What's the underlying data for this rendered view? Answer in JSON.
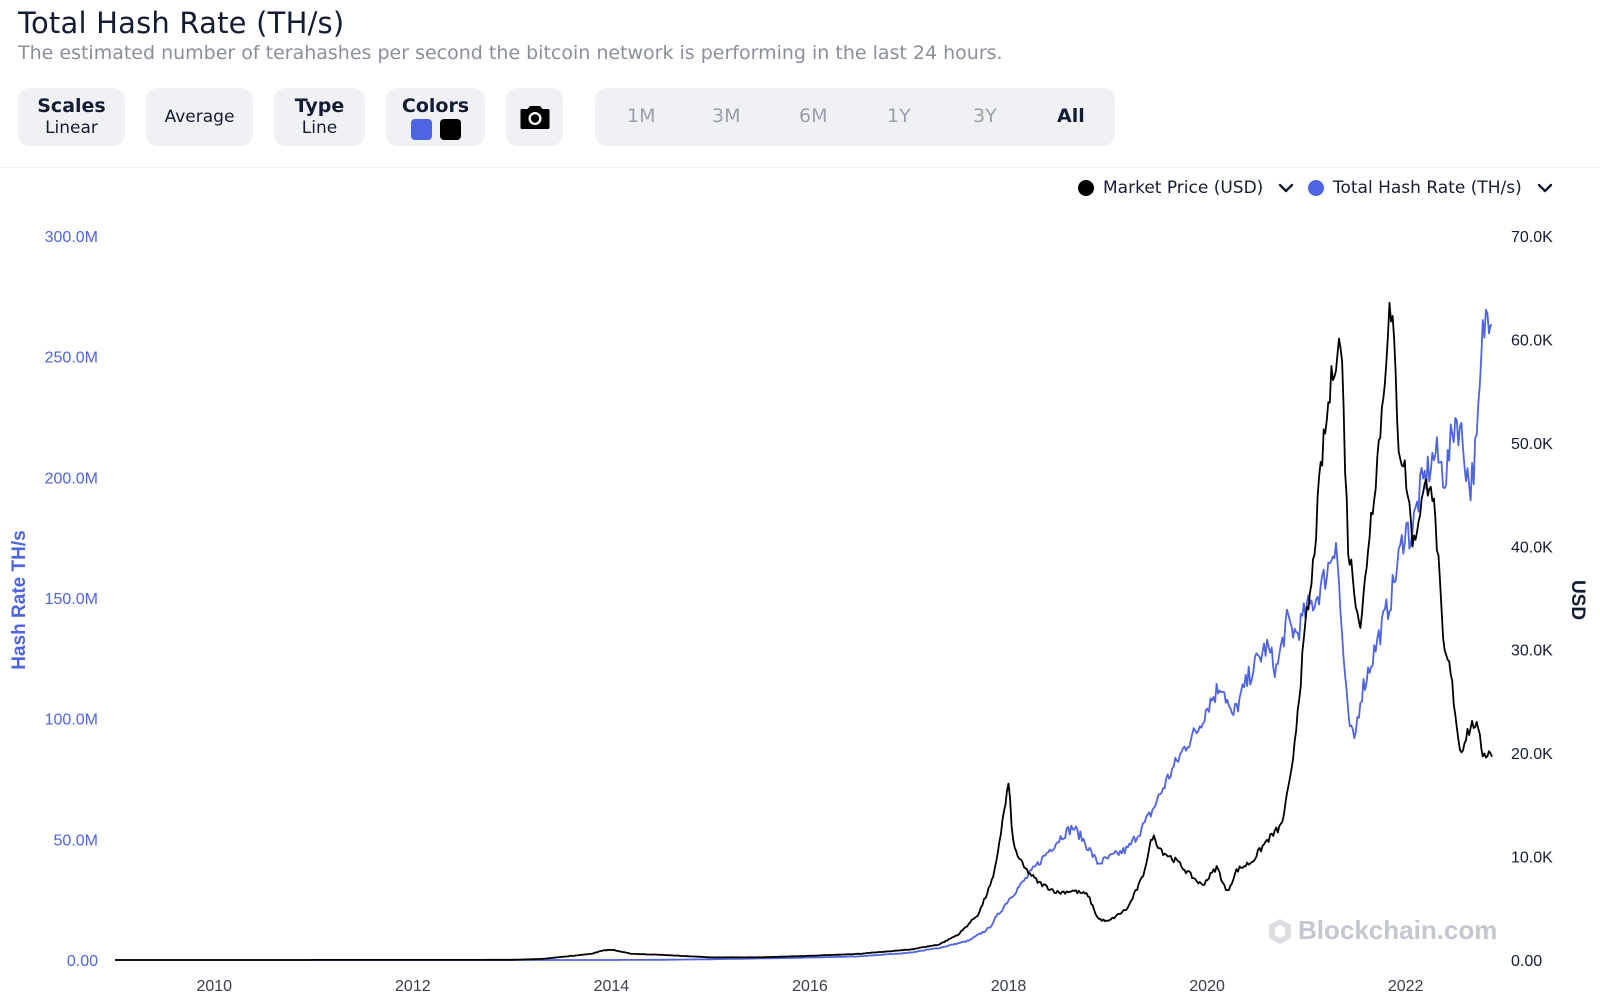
{
  "header": {
    "title": "Total Hash Rate (TH/s)",
    "subtitle": "The estimated number of terahashes per second the bitcoin network is performing in the last 24 hours."
  },
  "toolbar": {
    "scales": {
      "label": "Scales",
      "value": "Linear"
    },
    "average": {
      "label": "Average"
    },
    "type": {
      "label": "Type",
      "value": "Line"
    },
    "colors": {
      "label": "Colors",
      "swatches": [
        "#4e64e0",
        "#000000"
      ]
    },
    "screenshot_icon": "camera-icon",
    "ranges": [
      "1M",
      "3M",
      "6M",
      "1Y",
      "3Y",
      "All"
    ],
    "active_range": "All"
  },
  "legend": [
    {
      "label": "Market Price (USD)",
      "color": "#000000",
      "icon": "chevron-down-icon"
    },
    {
      "label": "Total Hash Rate (TH/s)",
      "color": "#4e64e0",
      "icon": "chevron-down-icon"
    }
  ],
  "watermark": "Blockchain.com",
  "chart_data": {
    "type": "line",
    "x_ticks": [
      "2010",
      "2012",
      "2014",
      "2016",
      "2018",
      "2020",
      "2022"
    ],
    "xlim": [
      2009.0,
      2022.9
    ],
    "y_left": {
      "label": "Hash Rate TH/s",
      "ticks": [
        "0.00",
        "50.0M",
        "100.0M",
        "150.0M",
        "200.0M",
        "250.0M",
        "300.0M"
      ],
      "ylim": [
        0,
        300000000
      ],
      "color": "#4e64e0"
    },
    "y_right": {
      "label": "USD",
      "ticks": [
        "0.00",
        "10.0K",
        "20.0K",
        "30.0K",
        "40.0K",
        "50.0K",
        "60.0K",
        "70.0K"
      ],
      "ylim": [
        0,
        70000
      ],
      "color": "#000000"
    },
    "series": [
      {
        "name": "Total Hash Rate (TH/s)",
        "axis": "left",
        "color": "#4e64e0",
        "x": [
          2009.0,
          2012.0,
          2013.0,
          2013.5,
          2014.0,
          2014.5,
          2015.0,
          2016.0,
          2016.5,
          2017.0,
          2017.3,
          2017.6,
          2017.8,
          2018.0,
          2018.2,
          2018.4,
          2018.55,
          2018.65,
          2018.75,
          2018.9,
          2019.0,
          2019.2,
          2019.35,
          2019.45,
          2019.6,
          2019.8,
          2019.9,
          2020.0,
          2020.15,
          2020.25,
          2020.35,
          2020.45,
          2020.6,
          2020.7,
          2020.8,
          2020.9,
          2021.0,
          2021.1,
          2021.2,
          2021.3,
          2021.35,
          2021.42,
          2021.48,
          2021.55,
          2021.7,
          2021.85,
          2022.0,
          2022.05,
          2022.15,
          2022.3,
          2022.4,
          2022.5,
          2022.55,
          2022.65,
          2022.72,
          2022.78,
          2022.83,
          2022.87
        ],
        "values": [
          0,
          0,
          1000,
          1000,
          10000,
          80000,
          300000,
          1000000,
          1500000,
          3000000,
          5000000,
          8000000,
          13000000,
          25000000,
          35000000,
          45000000,
          52000000,
          55000000,
          50000000,
          40000000,
          42000000,
          46000000,
          55000000,
          62000000,
          75000000,
          90000000,
          95000000,
          105000000,
          115000000,
          100000000,
          110000000,
          120000000,
          130000000,
          120000000,
          140000000,
          135000000,
          145000000,
          150000000,
          160000000,
          175000000,
          140000000,
          100000000,
          90000000,
          110000000,
          130000000,
          150000000,
          180000000,
          175000000,
          195000000,
          210000000,
          200000000,
          225000000,
          220000000,
          195000000,
          215000000,
          260000000,
          270000000,
          272000000
        ]
      },
      {
        "name": "Market Price (USD)",
        "axis": "right",
        "color": "#000000",
        "x": [
          2009.0,
          2010.5,
          2011.5,
          2012.5,
          2013.0,
          2013.3,
          2013.8,
          2013.9,
          2014.0,
          2014.2,
          2014.5,
          2015.0,
          2015.5,
          2016.0,
          2016.5,
          2017.0,
          2017.3,
          2017.5,
          2017.7,
          2017.85,
          2017.95,
          2018.0,
          2018.05,
          2018.15,
          2018.3,
          2018.5,
          2018.65,
          2018.8,
          2018.9,
          2019.0,
          2019.2,
          2019.35,
          2019.45,
          2019.55,
          2019.7,
          2019.8,
          2019.95,
          2020.1,
          2020.2,
          2020.3,
          2020.45,
          2020.6,
          2020.75,
          2020.85,
          2020.95,
          2021.0,
          2021.05,
          2021.15,
          2021.28,
          2021.35,
          2021.42,
          2021.5,
          2021.55,
          2021.62,
          2021.7,
          2021.78,
          2021.83,
          2021.88,
          2021.93,
          2022.0,
          2022.08,
          2022.15,
          2022.25,
          2022.32,
          2022.38,
          2022.45,
          2022.55,
          2022.62,
          2022.7,
          2022.78,
          2022.87
        ],
        "values": [
          0,
          0,
          10,
          10,
          20,
          100,
          600,
          900,
          1000,
          600,
          500,
          250,
          260,
          400,
          600,
          1000,
          1500,
          2500,
          4500,
          8000,
          14000,
          17000,
          11000,
          9000,
          7500,
          6500,
          6700,
          6300,
          4000,
          3700,
          5000,
          8000,
          12000,
          10500,
          9500,
          8500,
          7200,
          9000,
          6500,
          8700,
          9500,
          11500,
          13000,
          18000,
          28000,
          33000,
          36000,
          48000,
          58000,
          60000,
          40000,
          35000,
          32000,
          40000,
          47000,
          55000,
          63000,
          60000,
          50000,
          47000,
          40000,
          44000,
          47000,
          40000,
          30000,
          28000,
          20000,
          22000,
          23000,
          20000,
          20000
        ]
      }
    ]
  }
}
